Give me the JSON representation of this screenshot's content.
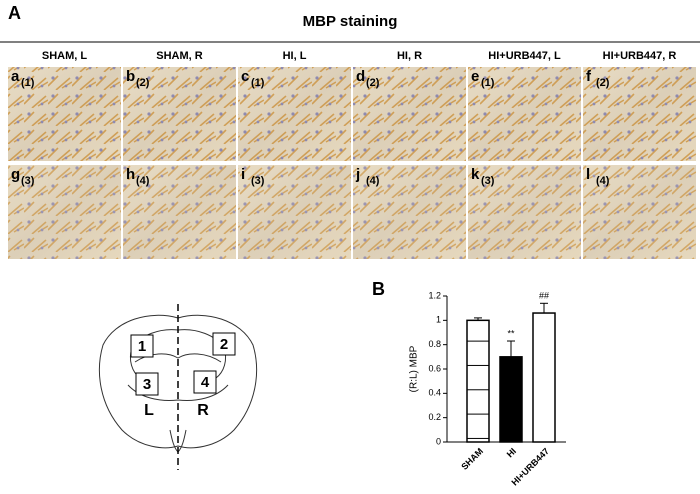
{
  "figure": {
    "panel_a": {
      "label": "A",
      "title": "MBP staining",
      "columns": [
        "SHAM, L",
        "SHAM, R",
        "HI, L",
        "HI, R",
        "HI+URB447, L",
        "HI+URB447, R"
      ],
      "tiles": [
        {
          "letter": "a",
          "region": "(1)"
        },
        {
          "letter": "b",
          "region": "(2)"
        },
        {
          "letter": "c",
          "region": "(1)"
        },
        {
          "letter": "d",
          "region": "(2)"
        },
        {
          "letter": "e",
          "region": "(1)"
        },
        {
          "letter": "f",
          "region": "(2)"
        },
        {
          "letter": "g",
          "region": "(3)"
        },
        {
          "letter": "h",
          "region": "(4)"
        },
        {
          "letter": "i",
          "region": "(3)"
        },
        {
          "letter": "j",
          "region": "(4)"
        },
        {
          "letter": "k",
          "region": "(3)"
        },
        {
          "letter": "l",
          "region": "(4)"
        }
      ]
    },
    "diagram": {
      "regions": [
        "1",
        "2",
        "3",
        "4"
      ],
      "sides": [
        "L",
        "R"
      ]
    }
  },
  "chart_data": {
    "type": "bar",
    "panel_label": "B",
    "y_label": "(R:L) MBP",
    "categories": [
      "SHAM",
      "HI",
      "HI+URB447"
    ],
    "values": [
      1.0,
      0.7,
      1.06
    ],
    "errors": [
      0.02,
      0.13,
      0.08
    ],
    "bar_labels": [
      null,
      "**",
      "##"
    ],
    "fills": [
      "#ffffff",
      "#000000",
      "#ffffff"
    ],
    "hatched": [
      true,
      false,
      false
    ],
    "ylim": [
      0,
      1.2
    ],
    "yticks": [
      0,
      0.2,
      0.4,
      0.6,
      0.8,
      1,
      1.2
    ]
  }
}
